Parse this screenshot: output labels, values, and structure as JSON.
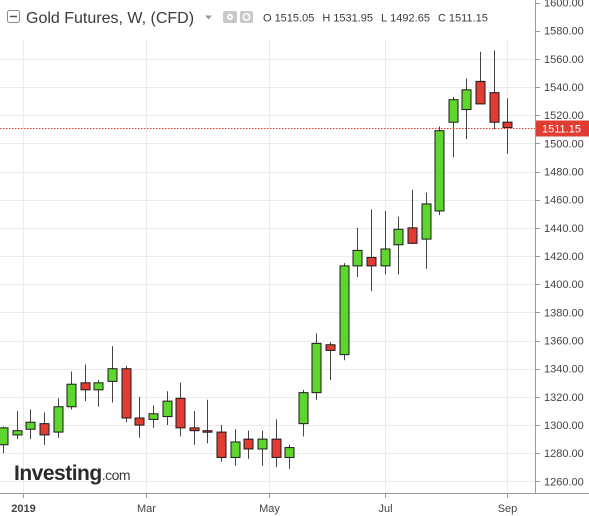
{
  "header": {
    "symbol": "Gold Futures, W, (CFD)",
    "ohlc": {
      "o_label": "O",
      "o_value": "1515.05",
      "h_label": "H",
      "h_value": "1531.95",
      "l_label": "L",
      "l_value": "1492.65",
      "c_label": "C",
      "c_value": "1511.15"
    }
  },
  "brand": {
    "name": "Investing",
    "suffix": ".com"
  },
  "colors": {
    "up": "#5ed62c",
    "down": "#e03c31",
    "candle_border": "#1a1a1a",
    "price_line": "#e03c31",
    "price_tag_bg": "#e03c31",
    "grid": "#ececec",
    "axis": "#9a9a9a"
  },
  "chart_data": {
    "type": "candlestick",
    "title": "Gold Futures, W, (CFD)",
    "interval": "weekly",
    "last_price": 1511.15,
    "last_price_label": "1511.15",
    "ylim": [
      1248,
      1602
    ],
    "y_ticks": [
      1260,
      1280,
      1300,
      1320,
      1340,
      1360,
      1380,
      1400,
      1420,
      1440,
      1460,
      1480,
      1500,
      1520,
      1540,
      1560,
      1580,
      1600
    ],
    "y_tick_labels": [
      "1260.00",
      "1280.00",
      "1300.00",
      "1320.00",
      "1340.00",
      "1360.00",
      "1380.00",
      "1400.00",
      "1420.00",
      "1440.00",
      "1460.00",
      "1480.00",
      "1500.00",
      "1520.00",
      "1540.00",
      "1560.00",
      "1580.00",
      "1600.00"
    ],
    "x_labels": [
      {
        "week": 1.5,
        "label": "2019"
      },
      {
        "week": 10.5,
        "label": "Mar"
      },
      {
        "week": 19.5,
        "label": "May"
      },
      {
        "week": 28,
        "label": "Jul"
      },
      {
        "week": 37,
        "label": "Sep"
      }
    ],
    "grid": true,
    "candles": [
      {
        "o": 1286,
        "h": 1299,
        "l": 1280,
        "c": 1298
      },
      {
        "o": 1293,
        "h": 1310,
        "l": 1290,
        "c": 1296
      },
      {
        "o": 1297,
        "h": 1311,
        "l": 1290,
        "c": 1302
      },
      {
        "o": 1301,
        "h": 1309,
        "l": 1286,
        "c": 1293
      },
      {
        "o": 1295,
        "h": 1319,
        "l": 1291,
        "c": 1313
      },
      {
        "o": 1313,
        "h": 1338,
        "l": 1311,
        "c": 1329
      },
      {
        "o": 1330,
        "h": 1343,
        "l": 1317,
        "c": 1325
      },
      {
        "o": 1325,
        "h": 1332,
        "l": 1313,
        "c": 1330
      },
      {
        "o": 1331,
        "h": 1356,
        "l": 1316,
        "c": 1340
      },
      {
        "o": 1340,
        "h": 1342,
        "l": 1302,
        "c": 1305
      },
      {
        "o": 1305,
        "h": 1320,
        "l": 1291,
        "c": 1300
      },
      {
        "o": 1304,
        "h": 1314,
        "l": 1298,
        "c": 1308
      },
      {
        "o": 1306,
        "h": 1324,
        "l": 1300,
        "c": 1317
      },
      {
        "o": 1319,
        "h": 1330,
        "l": 1292,
        "c": 1298
      },
      {
        "o": 1298,
        "h": 1310,
        "l": 1286,
        "c": 1296
      },
      {
        "o": 1296,
        "h": 1318,
        "l": 1287,
        "c": 1295
      },
      {
        "o": 1295,
        "h": 1300,
        "l": 1274,
        "c": 1277
      },
      {
        "o": 1277,
        "h": 1297,
        "l": 1271,
        "c": 1288
      },
      {
        "o": 1290,
        "h": 1296,
        "l": 1276,
        "c": 1283
      },
      {
        "o": 1283,
        "h": 1296,
        "l": 1271,
        "c": 1290
      },
      {
        "o": 1290,
        "h": 1304,
        "l": 1270,
        "c": 1277
      },
      {
        "o": 1277,
        "h": 1286,
        "l": 1269,
        "c": 1284
      },
      {
        "o": 1301,
        "h": 1325,
        "l": 1292,
        "c": 1323
      },
      {
        "o": 1323,
        "h": 1365,
        "l": 1318,
        "c": 1358
      },
      {
        "o": 1357,
        "h": 1359,
        "l": 1332,
        "c": 1353
      },
      {
        "o": 1350,
        "h": 1415,
        "l": 1346,
        "c": 1413
      },
      {
        "o": 1413,
        "h": 1440,
        "l": 1405,
        "c": 1424
      },
      {
        "o": 1419,
        "h": 1453,
        "l": 1395,
        "c": 1413
      },
      {
        "o": 1413,
        "h": 1452,
        "l": 1407,
        "c": 1425
      },
      {
        "o": 1428,
        "h": 1448,
        "l": 1407,
        "c": 1439
      },
      {
        "o": 1440,
        "h": 1467,
        "l": 1432,
        "c": 1429
      },
      {
        "o": 1432,
        "h": 1465,
        "l": 1411,
        "c": 1457
      },
      {
        "o": 1452,
        "h": 1512,
        "l": 1449,
        "c": 1509
      },
      {
        "o": 1515,
        "h": 1533,
        "l": 1490,
        "c": 1531
      },
      {
        "o": 1524,
        "h": 1546,
        "l": 1503,
        "c": 1538
      },
      {
        "o": 1544,
        "h": 1565,
        "l": 1531,
        "c": 1528
      },
      {
        "o": 1536,
        "h": 1566,
        "l": 1510,
        "c": 1515
      },
      {
        "o": 1515.05,
        "h": 1531.95,
        "l": 1492.65,
        "c": 1511.15
      }
    ]
  }
}
